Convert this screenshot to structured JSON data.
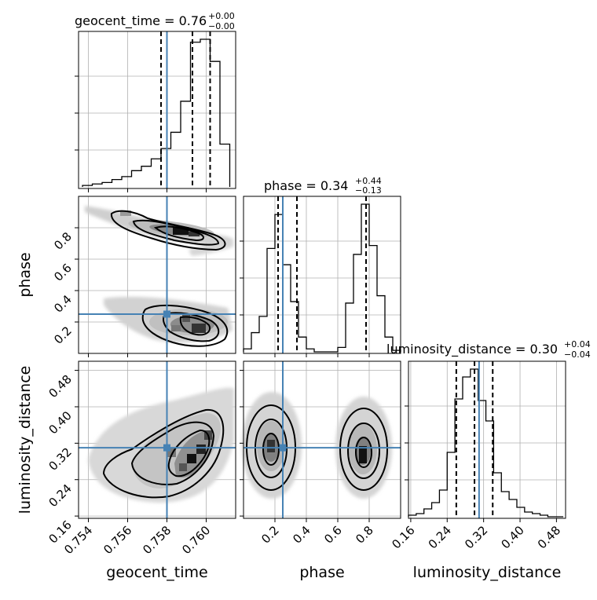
{
  "chart_data": {
    "type": "corner",
    "parameters": [
      "geocent_time",
      "phase",
      "luminosity_distance"
    ],
    "truth": {
      "geocent_time": 0.758,
      "phase": 0.25,
      "luminosity_distance": 0.31
    },
    "truth_color": "#4682b4",
    "panels": {
      "geocent_time": {
        "title": "geocent_time = 0.76",
        "title_sup": "+0.00",
        "title_sub": "−0.00",
        "range": [
          0.7535,
          0.7615
        ],
        "xticks": [
          0.754,
          0.756,
          0.758,
          0.76
        ],
        "xticklabels": [
          "0.754",
          "0.756",
          "0.758",
          "0.760"
        ],
        "quantiles": [
          0.7577,
          0.7593,
          0.7602
        ],
        "hist": {
          "bins": [
            0.7537,
            0.7542,
            0.7547,
            0.7552,
            0.7557,
            0.7562,
            0.7567,
            0.7572,
            0.7577,
            0.7582,
            0.7587,
            0.7592,
            0.7597,
            0.7602,
            0.7607,
            0.7612
          ],
          "counts": [
            1,
            2,
            3,
            5,
            7,
            11,
            14,
            19,
            26,
            37,
            58,
            98,
            100,
            85,
            29
          ]
        }
      },
      "phase": {
        "title": "phase = 0.34",
        "title_sup": "+0.44",
        "title_sub": "−0.13",
        "range": [
          0.0,
          1.0
        ],
        "xticks": [
          0.2,
          0.4,
          0.6,
          0.8
        ],
        "xticklabels": [
          "0.2",
          "0.4",
          "0.6",
          "0.8"
        ],
        "yticks": [
          0.2,
          0.4,
          0.6,
          0.8
        ],
        "yticklabels": [
          "0.2",
          "0.4",
          "0.6",
          "0.8"
        ],
        "quantiles": [
          0.22,
          0.34,
          0.78
        ],
        "hist": {
          "bins": [
            0.0,
            0.05,
            0.1,
            0.15,
            0.2,
            0.25,
            0.3,
            0.35,
            0.4,
            0.45,
            0.5,
            0.55,
            0.6,
            0.65,
            0.7,
            0.75,
            0.8,
            0.85,
            0.9,
            0.95,
            1.0
          ],
          "counts": [
            2,
            13,
            24,
            70,
            93,
            59,
            34,
            10,
            2,
            0,
            0,
            0,
            3,
            33,
            66,
            100,
            72,
            38,
            10,
            1
          ]
        }
      },
      "luminosity_distance": {
        "title": "luminosity_distance = 0.30",
        "title_sup": "+0.04",
        "title_sub": "−0.04",
        "range": [
          0.155,
          0.5
        ],
        "xticks": [
          0.16,
          0.24,
          0.32,
          0.4,
          0.48
        ],
        "xticklabels": [
          "0.16",
          "0.24",
          "0.32",
          "0.40",
          "0.48"
        ],
        "yticks": [
          0.16,
          0.24,
          0.32,
          0.4,
          0.48
        ],
        "yticklabels": [
          "0.16",
          "0.24",
          "0.32",
          "0.40",
          "0.48"
        ],
        "quantiles": [
          0.26,
          0.3,
          0.34
        ],
        "hist": {
          "bins": [
            0.155,
            0.172,
            0.189,
            0.206,
            0.223,
            0.24,
            0.257,
            0.274,
            0.291,
            0.308,
            0.325,
            0.342,
            0.359,
            0.376,
            0.393,
            0.41,
            0.427,
            0.444,
            0.461,
            0.478,
            0.495
          ],
          "counts": [
            1,
            2,
            5,
            9,
            17,
            41,
            75,
            89,
            94,
            74,
            61,
            28,
            16,
            11,
            6,
            3,
            2,
            1,
            0,
            0
          ]
        }
      }
    },
    "axis_labels": {
      "x": [
        "geocent_time",
        "phase",
        "luminosity_distance"
      ],
      "y": [
        "phase",
        "luminosity_distance"
      ]
    }
  }
}
